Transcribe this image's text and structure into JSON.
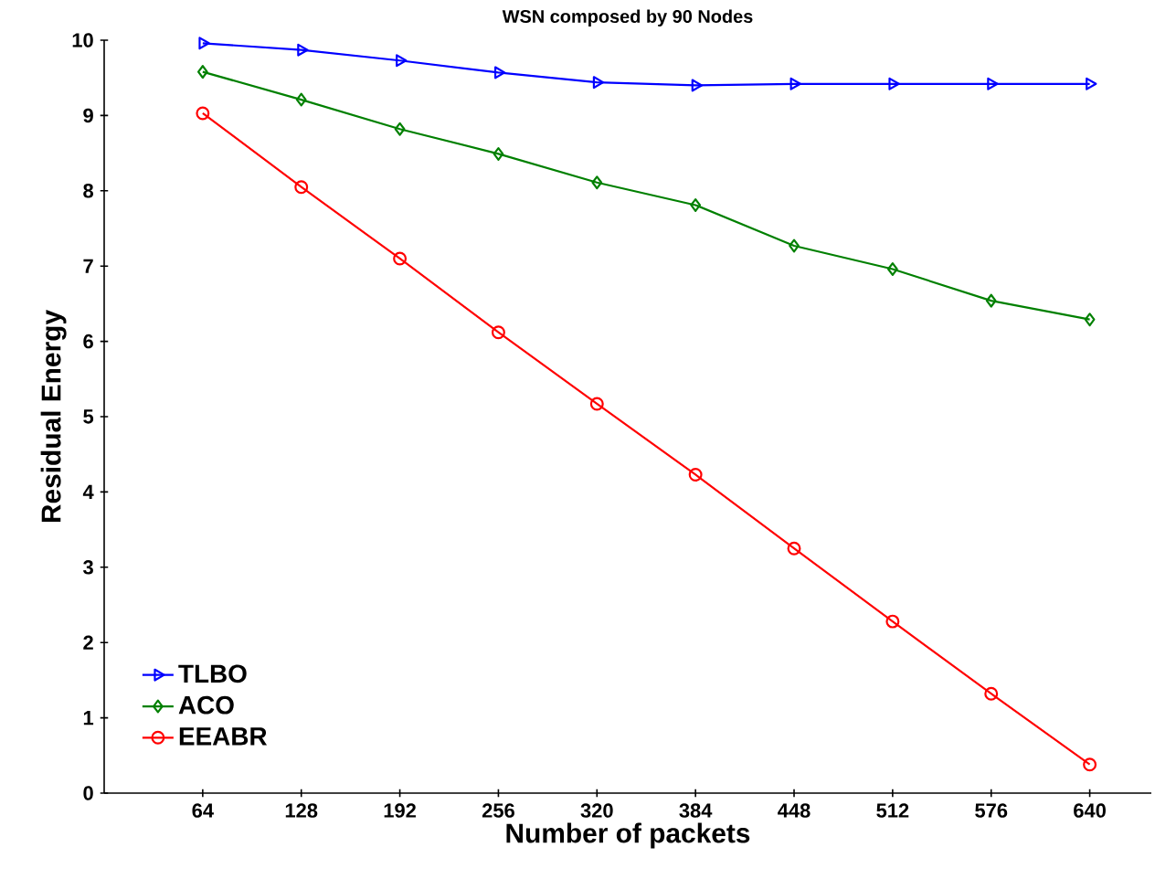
{
  "chart_data": {
    "type": "line",
    "title": "WSN composed by 90 Nodes",
    "xlabel": "Number of packets",
    "ylabel": "Residual Energy",
    "x": [
      64,
      128,
      192,
      256,
      320,
      384,
      448,
      512,
      576,
      640
    ],
    "xlim": [
      0,
      680
    ],
    "xticks": [
      64,
      128,
      192,
      256,
      320,
      384,
      448,
      512,
      576,
      640
    ],
    "ylim": [
      0,
      10
    ],
    "yticks": [
      0,
      1,
      2,
      3,
      4,
      5,
      6,
      7,
      8,
      9,
      10
    ],
    "grid": false,
    "legend": "bottom left",
    "line_style": "solid",
    "series": [
      {
        "name": "TLBO",
        "color": "#0000ff",
        "marker": "triangle",
        "values": [
          9.96,
          9.87,
          9.73,
          9.57,
          9.44,
          9.4,
          9.42,
          9.42,
          9.42,
          9.42
        ]
      },
      {
        "name": "ACO",
        "color": "#008000",
        "marker": "diamond",
        "values": [
          9.58,
          9.21,
          8.82,
          8.49,
          8.11,
          7.81,
          7.27,
          6.96,
          6.54,
          6.29
        ]
      },
      {
        "name": "EEABR",
        "color": "#ff0000",
        "marker": "circle",
        "values": [
          9.03,
          8.05,
          7.1,
          6.12,
          5.17,
          4.23,
          3.25,
          2.28,
          1.32,
          0.38
        ]
      }
    ]
  }
}
